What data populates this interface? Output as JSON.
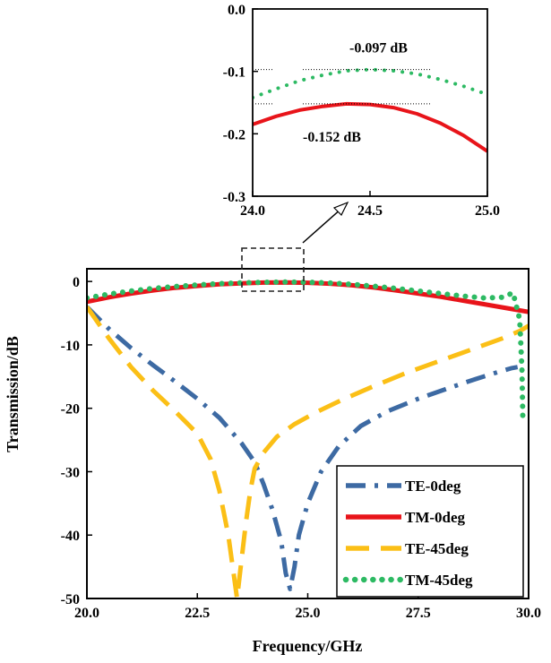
{
  "chart_data": [
    {
      "type": "line",
      "name": "main",
      "title": "",
      "xlabel": "Frequency/GHz",
      "ylabel": "Transmission/dB",
      "xlim": [
        20,
        30
      ],
      "ylim": [
        -50,
        2
      ],
      "xticks": [
        "20.0",
        "22.5",
        "25.0",
        "27.5",
        "30.0"
      ],
      "xtick_values": [
        20,
        22.5,
        25,
        27.5,
        30
      ],
      "yticks": [
        "0",
        "-10",
        "-20",
        "-30",
        "-40",
        "-50"
      ],
      "ytick_values": [
        0,
        -10,
        -20,
        -30,
        -40,
        -50
      ],
      "legend_position": "bottom-right",
      "series": [
        {
          "name": "TE-0deg",
          "color": "#3d6aa3",
          "style": "dashdot",
          "x": [
            20,
            20.5,
            21,
            21.5,
            22,
            22.5,
            23,
            23.5,
            23.8,
            24.0,
            24.2,
            24.4,
            24.5,
            24.6,
            24.7,
            24.8,
            25.0,
            25.3,
            25.7,
            26.2,
            26.8,
            27.5,
            28.2,
            28.8,
            29.3,
            29.6,
            29.75
          ],
          "y": [
            -4,
            -7.5,
            -10.5,
            -13.2,
            -15.8,
            -18.5,
            -21.5,
            -25.5,
            -28.5,
            -32,
            -36,
            -41,
            -46,
            -48.5,
            -45,
            -40,
            -35,
            -30,
            -26,
            -22.8,
            -20.5,
            -18.5,
            -16.8,
            -15.4,
            -14.3,
            -13.7,
            -13.5
          ]
        },
        {
          "name": "TM-0deg",
          "color": "#e8141a",
          "style": "solid",
          "x": [
            20,
            20.5,
            21,
            21.5,
            22,
            22.5,
            23,
            23.5,
            24,
            24.5,
            25,
            25.5,
            26,
            26.5,
            27,
            27.5,
            28,
            28.5,
            29,
            29.5,
            30
          ],
          "y": [
            -3.2,
            -2.5,
            -1.9,
            -1.4,
            -1.0,
            -0.7,
            -0.45,
            -0.3,
            -0.18,
            -0.152,
            -0.2,
            -0.35,
            -0.6,
            -0.95,
            -1.4,
            -1.9,
            -2.4,
            -3.0,
            -3.6,
            -4.2,
            -4.8
          ]
        },
        {
          "name": "TE-45deg",
          "color": "#fbbf16",
          "style": "dashed",
          "x": [
            20,
            20.5,
            21,
            21.5,
            22,
            22.5,
            22.8,
            23.0,
            23.2,
            23.3,
            23.4,
            23.5,
            23.6,
            23.7,
            23.8,
            24.0,
            24.3,
            24.7,
            25.2,
            25.8,
            26.5,
            27.2,
            28.0,
            28.8,
            29.4,
            29.8,
            30.0
          ],
          "y": [
            -4,
            -9,
            -13.5,
            -17.2,
            -20.5,
            -24,
            -28,
            -33,
            -40,
            -45,
            -50,
            -44,
            -38,
            -33,
            -29.5,
            -27,
            -24.5,
            -22.5,
            -20.6,
            -18.6,
            -16.5,
            -14.5,
            -12.5,
            -10.5,
            -9.0,
            -7.8,
            -7
          ]
        },
        {
          "name": "TM-45deg",
          "color": "#2dba63",
          "style": "dotted",
          "x": [
            20,
            20.5,
            21,
            21.5,
            22,
            22.5,
            23,
            23.5,
            24,
            24.5,
            25,
            25.5,
            26,
            26.5,
            27,
            27.5,
            28,
            28.5,
            29,
            29.4,
            29.65,
            29.8,
            29.85,
            29.87
          ],
          "y": [
            -2.6,
            -2.0,
            -1.5,
            -1.1,
            -0.8,
            -0.55,
            -0.35,
            -0.22,
            -0.13,
            -0.097,
            -0.12,
            -0.25,
            -0.45,
            -0.75,
            -1.1,
            -1.5,
            -1.9,
            -2.3,
            -2.6,
            -2.5,
            -1.8,
            -6,
            -14,
            -22
          ]
        }
      ]
    },
    {
      "type": "line",
      "name": "inset",
      "title": "",
      "xlabel": "",
      "ylabel": "",
      "xlim": [
        24.0,
        25.0
      ],
      "ylim": [
        -0.3,
        0.0
      ],
      "xticks": [
        "24.0",
        "24.5",
        "25.0"
      ],
      "xtick_values": [
        24.0,
        24.5,
        25.0
      ],
      "yticks": [
        "0.0",
        "-0.1",
        "-0.2",
        "-0.3"
      ],
      "ytick_values": [
        0.0,
        -0.1,
        -0.2,
        -0.3
      ],
      "annotations": [
        {
          "text": "-0.097 dB",
          "y": -0.097
        },
        {
          "text": "-0.152 dB",
          "y": -0.152
        }
      ],
      "series": [
        {
          "name": "TM-0deg",
          "color": "#e8141a",
          "style": "solid",
          "x": [
            24.0,
            24.1,
            24.2,
            24.3,
            24.4,
            24.5,
            24.6,
            24.7,
            24.8,
            24.9,
            25.0
          ],
          "y": [
            -0.185,
            -0.172,
            -0.162,
            -0.156,
            -0.152,
            -0.153,
            -0.158,
            -0.168,
            -0.183,
            -0.203,
            -0.228
          ]
        },
        {
          "name": "TM-45deg",
          "color": "#2dba63",
          "style": "dotted",
          "x": [
            24.0,
            24.1,
            24.2,
            24.3,
            24.4,
            24.5,
            24.6,
            24.7,
            24.8,
            24.9,
            25.0
          ],
          "y": [
            -0.142,
            -0.128,
            -0.115,
            -0.106,
            -0.099,
            -0.097,
            -0.099,
            -0.104,
            -0.113,
            -0.124,
            -0.137
          ]
        }
      ]
    }
  ]
}
